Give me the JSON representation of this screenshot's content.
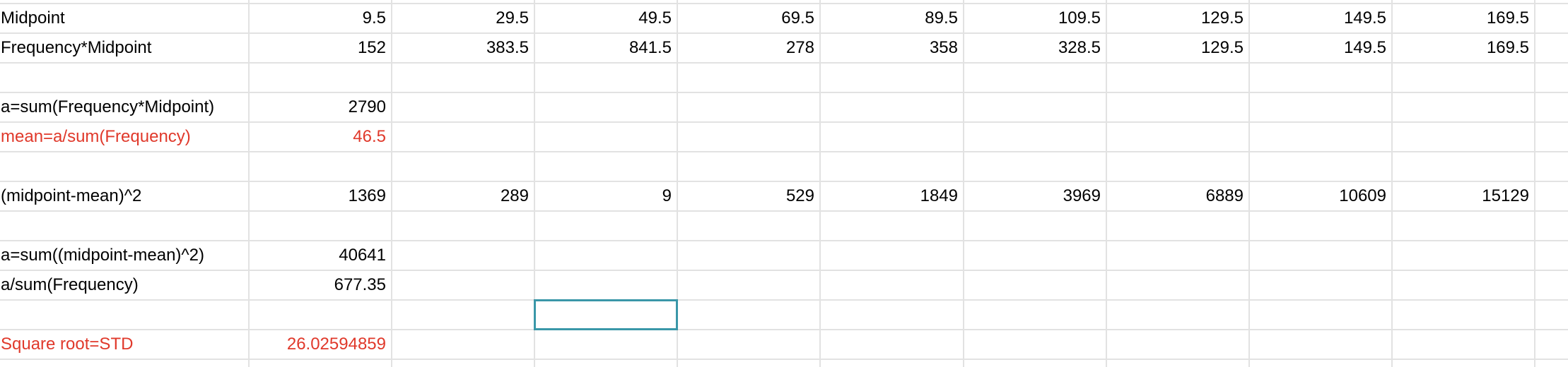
{
  "sheet": {
    "rows": [
      {
        "id": "midpoint",
        "label": "Midpoint",
        "label_color": "",
        "values": [
          "9.5",
          "29.5",
          "49.5",
          "69.5",
          "89.5",
          "109.5",
          "129.5",
          "149.5",
          "169.5"
        ],
        "value_color": ""
      },
      {
        "id": "frequency-midpoint",
        "label": "Frequency*Midpoint",
        "label_color": "",
        "values": [
          "152",
          "383.5",
          "841.5",
          "278",
          "358",
          "328.5",
          "129.5",
          "149.5",
          "169.5"
        ],
        "value_color": ""
      },
      {
        "id": "blank-1",
        "label": "",
        "label_color": "",
        "values": [],
        "value_color": ""
      },
      {
        "id": "sum-frequency-midpoint",
        "label": "a=sum(Frequency*Midpoint)",
        "label_color": "",
        "values": [
          "2790"
        ],
        "value_color": ""
      },
      {
        "id": "mean",
        "label": "mean=a/sum(Frequency)",
        "label_color": "#e0392b",
        "values": [
          "46.5"
        ],
        "value_color": "#e0392b"
      },
      {
        "id": "blank-2",
        "label": "",
        "label_color": "",
        "values": [],
        "value_color": ""
      },
      {
        "id": "midpoint-mean-sq",
        "label": "(midpoint-mean)^2",
        "label_color": "",
        "values": [
          "1369",
          "289",
          "9",
          "529",
          "1849",
          "3969",
          "6889",
          "10609",
          "15129"
        ],
        "value_color": ""
      },
      {
        "id": "blank-3",
        "label": "",
        "label_color": "",
        "values": [],
        "value_color": ""
      },
      {
        "id": "sum-midpoint-mean-sq",
        "label": "a=sum((midpoint-mean)^2)",
        "label_color": "",
        "values": [
          "40641"
        ],
        "value_color": ""
      },
      {
        "id": "a-over-sum-frequency",
        "label": "a/sum(Frequency)",
        "label_color": "",
        "values": [
          "677.35"
        ],
        "value_color": ""
      },
      {
        "id": "blank-4",
        "label": "",
        "label_color": "",
        "values": [],
        "value_color": ""
      },
      {
        "id": "square-root-std",
        "label": "Square root=STD",
        "label_color": "#e0392b",
        "values": [
          "26.02594859"
        ],
        "value_color": "#e0392b"
      }
    ],
    "selected_cell": {
      "row": 10,
      "col": 3
    },
    "colors": {
      "grid": "#e2e2e2",
      "selection": "#3a97a8",
      "highlight_text": "#e0392b"
    }
  }
}
